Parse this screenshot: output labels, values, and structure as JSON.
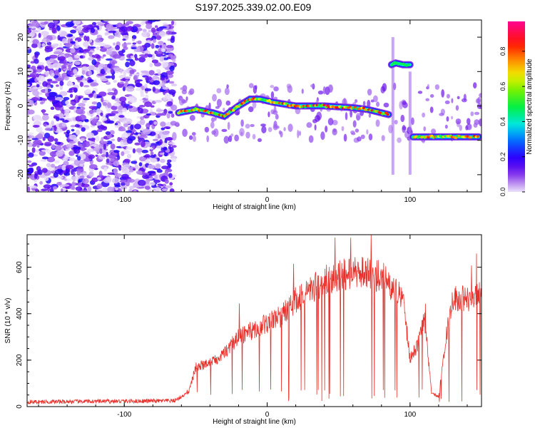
{
  "title": "S197.2025.339.02.00.E09",
  "chart_data": [
    {
      "type": "heatmap",
      "name": "spectrogram",
      "xlabel": "Height of straight line (km)",
      "ylabel": "Frequency (Hz)",
      "xlim": [
        -168,
        150
      ],
      "ylim": [
        -25,
        25
      ],
      "xticks": [
        -100,
        0,
        100
      ],
      "yticks": [
        -20,
        -10,
        0,
        10,
        20
      ],
      "colorbar": {
        "label": "Normalized spectral amplitude",
        "ticks": [
          0.0,
          0.2,
          0.4,
          0.6,
          0.8
        ],
        "range": [
          0,
          0.97
        ]
      },
      "ridge_segments": [
        {
          "x": [
            -62,
            -50,
            -38,
            -30,
            -20,
            -12,
            -5,
            5,
            20,
            40,
            60,
            70,
            85
          ],
          "freq": [
            -2,
            -1,
            -2,
            -3,
            0,
            2,
            2,
            1,
            0,
            0,
            -0.5,
            -1,
            -2.5
          ],
          "peak": 0.9
        },
        {
          "x": [
            87,
            90,
            95,
            100
          ],
          "freq": [
            12,
            12.5,
            12,
            12
          ],
          "peak": 0.5
        },
        {
          "x": [
            102,
            110,
            120,
            130,
            140,
            148
          ],
          "freq": [
            -9,
            -9,
            -9,
            -9,
            -9,
            -9
          ],
          "peak": 0.85
        }
      ],
      "noise_region_x": [
        -168,
        -65
      ]
    },
    {
      "type": "line",
      "name": "snr",
      "xlabel": "Height of straight line (km)",
      "ylabel": "SNR (10 * v/v)",
      "xlim": [
        -168,
        150
      ],
      "ylim": [
        0,
        740
      ],
      "xticks": [
        -100,
        0,
        100
      ],
      "yticks": [
        0,
        200,
        400,
        600
      ],
      "color": "#e8302a",
      "envelope": {
        "x": [
          -168,
          -65,
          -55,
          -50,
          -40,
          -30,
          -20,
          -10,
          0,
          10,
          20,
          30,
          40,
          50,
          60,
          70,
          80,
          87,
          95,
          100,
          105,
          110,
          115,
          120,
          125,
          130,
          140,
          150
        ],
        "y": [
          20,
          25,
          60,
          170,
          190,
          230,
          300,
          330,
          360,
          390,
          460,
          500,
          540,
          560,
          580,
          570,
          560,
          520,
          460,
          210,
          260,
          380,
          60,
          40,
          300,
          470,
          460,
          500
        ]
      }
    }
  ]
}
